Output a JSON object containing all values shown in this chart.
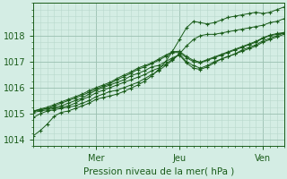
{
  "title": "",
  "xlabel": "Pression niveau de la mer( hPa )",
  "bg_color": "#d4ede4",
  "plot_bg_color": "#d4ede4",
  "line_color": "#1a5c1a",
  "grid_major_color": "#9abfb0",
  "grid_minor_color": "#b8d8cc",
  "ylim": [
    1013.75,
    1019.25
  ],
  "xlim": [
    0,
    108
  ],
  "yticks": [
    1014,
    1015,
    1016,
    1017,
    1018
  ],
  "xtick_positions": [
    27,
    63,
    99
  ],
  "xtick_labels": [
    "Mer",
    "Jeu",
    "Ven"
  ],
  "series": [
    [
      0,
      1014.15,
      3,
      1014.35,
      6,
      1014.6,
      9,
      1014.9,
      12,
      1015.05,
      15,
      1015.1,
      18,
      1015.2,
      21,
      1015.3,
      24,
      1015.4,
      27,
      1015.55,
      30,
      1015.62,
      33,
      1015.68,
      36,
      1015.75,
      39,
      1015.85,
      42,
      1015.98,
      45,
      1016.1,
      48,
      1016.25,
      51,
      1016.45,
      54,
      1016.7,
      57,
      1017.0,
      60,
      1017.4,
      63,
      1017.85,
      66,
      1018.3,
      69,
      1018.55,
      72,
      1018.5,
      75,
      1018.45,
      78,
      1018.5,
      81,
      1018.6,
      84,
      1018.7,
      87,
      1018.75,
      90,
      1018.8,
      93,
      1018.85,
      96,
      1018.9,
      99,
      1018.85,
      102,
      1018.9,
      105,
      1019.0,
      108,
      1019.1
    ],
    [
      0,
      1014.85,
      3,
      1015.0,
      6,
      1015.1,
      9,
      1015.15,
      12,
      1015.2,
      15,
      1015.25,
      18,
      1015.3,
      21,
      1015.4,
      24,
      1015.5,
      27,
      1015.65,
      30,
      1015.75,
      33,
      1015.85,
      36,
      1015.9,
      39,
      1016.0,
      42,
      1016.1,
      45,
      1016.2,
      48,
      1016.35,
      51,
      1016.5,
      54,
      1016.65,
      57,
      1016.85,
      60,
      1017.05,
      63,
      1017.3,
      66,
      1017.6,
      69,
      1017.85,
      72,
      1018.0,
      75,
      1018.05,
      78,
      1018.05,
      81,
      1018.1,
      84,
      1018.15,
      87,
      1018.2,
      90,
      1018.25,
      93,
      1018.3,
      96,
      1018.35,
      99,
      1018.4,
      102,
      1018.5,
      105,
      1018.55,
      108,
      1018.65
    ],
    [
      0,
      1015.05,
      3,
      1015.1,
      6,
      1015.15,
      9,
      1015.2,
      12,
      1015.25,
      15,
      1015.3,
      18,
      1015.4,
      21,
      1015.55,
      24,
      1015.65,
      27,
      1015.8,
      30,
      1015.9,
      33,
      1016.0,
      36,
      1016.1,
      39,
      1016.2,
      42,
      1016.3,
      45,
      1016.4,
      48,
      1016.5,
      51,
      1016.65,
      54,
      1016.75,
      57,
      1016.9,
      60,
      1017.1,
      63,
      1017.3,
      66,
      1017.0,
      69,
      1016.85,
      72,
      1016.75,
      75,
      1016.85,
      78,
      1017.0,
      81,
      1017.1,
      84,
      1017.2,
      87,
      1017.3,
      90,
      1017.4,
      93,
      1017.5,
      96,
      1017.6,
      99,
      1017.75,
      102,
      1017.85,
      105,
      1017.95,
      108,
      1018.05
    ],
    [
      0,
      1015.1,
      3,
      1015.15,
      6,
      1015.2,
      9,
      1015.25,
      12,
      1015.3,
      15,
      1015.4,
      18,
      1015.5,
      21,
      1015.6,
      24,
      1015.75,
      27,
      1015.9,
      30,
      1016.0,
      33,
      1016.1,
      36,
      1016.2,
      39,
      1016.3,
      42,
      1016.45,
      45,
      1016.55,
      48,
      1016.65,
      51,
      1016.8,
      54,
      1016.85,
      57,
      1017.0,
      60,
      1017.15,
      63,
      1017.25,
      66,
      1016.95,
      69,
      1016.75,
      72,
      1016.7,
      75,
      1016.8,
      78,
      1016.95,
      81,
      1017.1,
      84,
      1017.2,
      87,
      1017.3,
      90,
      1017.45,
      93,
      1017.55,
      96,
      1017.65,
      99,
      1017.8,
      102,
      1017.9,
      105,
      1018.0,
      108,
      1018.1
    ],
    [
      0,
      1015.1,
      3,
      1015.15,
      6,
      1015.2,
      9,
      1015.3,
      12,
      1015.4,
      15,
      1015.5,
      18,
      1015.6,
      21,
      1015.7,
      24,
      1015.82,
      27,
      1015.95,
      30,
      1016.05,
      33,
      1016.15,
      36,
      1016.3,
      39,
      1016.42,
      42,
      1016.55,
      45,
      1016.7,
      48,
      1016.8,
      51,
      1016.92,
      54,
      1017.05,
      57,
      1017.2,
      60,
      1017.35,
      63,
      1017.35,
      66,
      1017.15,
      69,
      1017.0,
      72,
      1016.95,
      75,
      1017.05,
      78,
      1017.15,
      81,
      1017.25,
      84,
      1017.35,
      87,
      1017.45,
      90,
      1017.55,
      93,
      1017.65,
      96,
      1017.75,
      99,
      1017.9,
      102,
      1018.0,
      105,
      1018.05,
      108,
      1018.1
    ],
    [
      0,
      1015.1,
      3,
      1015.18,
      6,
      1015.25,
      9,
      1015.35,
      12,
      1015.45,
      15,
      1015.55,
      18,
      1015.65,
      21,
      1015.75,
      24,
      1015.88,
      27,
      1016.0,
      30,
      1016.1,
      33,
      1016.2,
      36,
      1016.35,
      39,
      1016.48,
      42,
      1016.6,
      45,
      1016.75,
      48,
      1016.85,
      51,
      1016.95,
      54,
      1017.1,
      57,
      1017.25,
      60,
      1017.38,
      63,
      1017.4,
      66,
      1017.2,
      69,
      1017.05,
      72,
      1016.98,
      75,
      1017.08,
      78,
      1017.18,
      81,
      1017.28,
      84,
      1017.38,
      87,
      1017.48,
      90,
      1017.58,
      93,
      1017.68,
      96,
      1017.78,
      99,
      1017.92,
      102,
      1018.02,
      105,
      1018.08,
      108,
      1018.12
    ]
  ]
}
